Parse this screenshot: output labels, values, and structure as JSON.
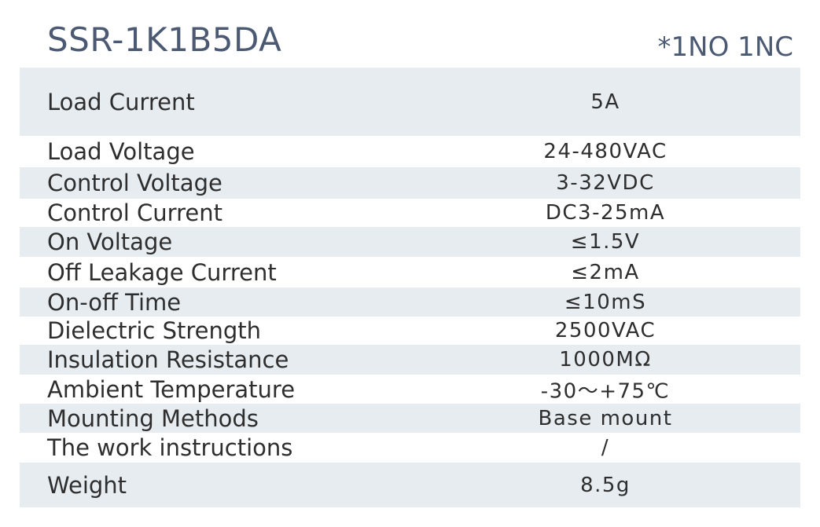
{
  "header": {
    "title": "SSR-1K1B5DA",
    "note": "*1NO 1NC"
  },
  "table": {
    "rows": [
      [
        "Load Current",
        "5A"
      ],
      [
        "Load Voltage",
        "24-480VAC"
      ],
      [
        "Control Voltage",
        "3-32VDC"
      ],
      [
        "Control Current",
        "DC3-25mA"
      ],
      [
        "On Voltage",
        "≤1.5V"
      ],
      [
        "Off Leakage Current",
        "≤2mA"
      ],
      [
        "On-off Time",
        "≤10mS"
      ],
      [
        "Dielectric Strength",
        "2500VAC"
      ],
      [
        "Insulation Resistance",
        "1000MΩ"
      ],
      [
        "Ambient Temperature",
        "-30～+75℃"
      ],
      [
        "Mounting Methods",
        "Base mount"
      ],
      [
        "The work instructions",
        "/"
      ],
      [
        "Weight",
        "8.5g"
      ]
    ]
  }
}
